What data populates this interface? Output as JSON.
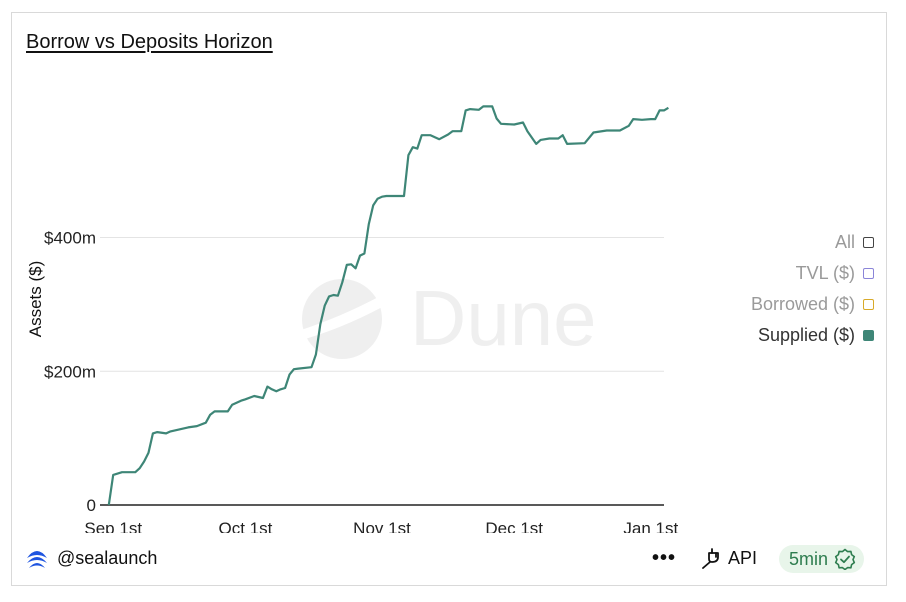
{
  "header": {
    "title": "Borrow vs Deposits Horizon"
  },
  "watermark": {
    "text": "Dune"
  },
  "chart_data": {
    "type": "line",
    "ylabel": "Assets ($)",
    "xlabel": "",
    "ylim": [
      0,
      640000000
    ],
    "y_ticks": [
      {
        "value": 0,
        "label": "0"
      },
      {
        "value": 200000000,
        "label": "$200m"
      },
      {
        "value": 400000000,
        "label": "$400m"
      }
    ],
    "x_ticks": [
      {
        "date": "2025-09-01",
        "label": "Sep 1st"
      },
      {
        "date": "2025-10-01",
        "label": "Oct 1st"
      },
      {
        "date": "2025-11-01",
        "label": "Nov 1st"
      },
      {
        "date": "2025-12-01",
        "label": "Dec 1st"
      },
      {
        "date": "2026-01-01",
        "label": "Jan 1st"
      }
    ],
    "xlim": [
      "2025-08-29",
      "2026-01-04"
    ],
    "grid": "horizontal",
    "legend_position": "right",
    "legend": [
      {
        "label": "All",
        "color": "#444444",
        "style": "outline"
      },
      {
        "label": "TVL ($)",
        "color": "#8b85d8",
        "style": "outline"
      },
      {
        "label": "Borrowed ($)",
        "color": "#d8aa2a",
        "style": "outline"
      },
      {
        "label": "Supplied ($)",
        "color": "#3e8677",
        "style": "filled"
      }
    ],
    "series": [
      {
        "name": "Supplied ($)",
        "color": "#3e8677",
        "points": [
          [
            "2025-08-31",
            0
          ],
          [
            "2025-09-01",
            45000000
          ],
          [
            "2025-09-02",
            47000000
          ],
          [
            "2025-09-03",
            49000000
          ],
          [
            "2025-09-06",
            49000000
          ],
          [
            "2025-09-07",
            55000000
          ],
          [
            "2025-09-08",
            65000000
          ],
          [
            "2025-09-09",
            78000000
          ],
          [
            "2025-09-10",
            107000000
          ],
          [
            "2025-09-11",
            109000000
          ],
          [
            "2025-09-13",
            107000000
          ],
          [
            "2025-09-14",
            110000000
          ],
          [
            "2025-09-16",
            113000000
          ],
          [
            "2025-09-18",
            116000000
          ],
          [
            "2025-09-20",
            118000000
          ],
          [
            "2025-09-22",
            123000000
          ],
          [
            "2025-09-23",
            135000000
          ],
          [
            "2025-09-24",
            140000000
          ],
          [
            "2025-09-27",
            140000000
          ],
          [
            "2025-09-28",
            150000000
          ],
          [
            "2025-09-30",
            156000000
          ],
          [
            "2025-10-01",
            158000000
          ],
          [
            "2025-10-03",
            163000000
          ],
          [
            "2025-10-05",
            160000000
          ],
          [
            "2025-10-06",
            177000000
          ],
          [
            "2025-10-07",
            173000000
          ],
          [
            "2025-10-08",
            170000000
          ],
          [
            "2025-10-09",
            173000000
          ],
          [
            "2025-10-10",
            175000000
          ],
          [
            "2025-10-11",
            195000000
          ],
          [
            "2025-10-12",
            203000000
          ],
          [
            "2025-10-13",
            204000000
          ],
          [
            "2025-10-16",
            206000000
          ],
          [
            "2025-10-17",
            225000000
          ],
          [
            "2025-10-18",
            270000000
          ],
          [
            "2025-10-19",
            298000000
          ],
          [
            "2025-10-20",
            312000000
          ],
          [
            "2025-10-21",
            314000000
          ],
          [
            "2025-10-22",
            313000000
          ],
          [
            "2025-10-23",
            333000000
          ],
          [
            "2025-10-24",
            359000000
          ],
          [
            "2025-10-25",
            360000000
          ],
          [
            "2025-10-26",
            354000000
          ],
          [
            "2025-10-27",
            373000000
          ],
          [
            "2025-10-28",
            376000000
          ],
          [
            "2025-10-29",
            420000000
          ],
          [
            "2025-10-30",
            448000000
          ],
          [
            "2025-10-31",
            458000000
          ],
          [
            "2025-11-01",
            461000000
          ],
          [
            "2025-11-02",
            462000000
          ],
          [
            "2025-11-06",
            462000000
          ],
          [
            "2025-11-07",
            523000000
          ],
          [
            "2025-11-08",
            535000000
          ],
          [
            "2025-11-09",
            533000000
          ],
          [
            "2025-11-10",
            553000000
          ],
          [
            "2025-11-12",
            553000000
          ],
          [
            "2025-11-14",
            547000000
          ],
          [
            "2025-11-16",
            554000000
          ],
          [
            "2025-11-17",
            559000000
          ],
          [
            "2025-11-19",
            559000000
          ],
          [
            "2025-11-20",
            590000000
          ],
          [
            "2025-11-21",
            592000000
          ],
          [
            "2025-11-23",
            591000000
          ],
          [
            "2025-11-24",
            596000000
          ],
          [
            "2025-11-26",
            596000000
          ],
          [
            "2025-11-27",
            578000000
          ],
          [
            "2025-11-28",
            570000000
          ],
          [
            "2025-12-01",
            569000000
          ],
          [
            "2025-12-03",
            572000000
          ],
          [
            "2025-12-04",
            559000000
          ],
          [
            "2025-12-06",
            540000000
          ],
          [
            "2025-12-07",
            546000000
          ],
          [
            "2025-12-09",
            548000000
          ],
          [
            "2025-12-11",
            548000000
          ],
          [
            "2025-12-12",
            553000000
          ],
          [
            "2025-12-13",
            540000000
          ],
          [
            "2025-12-17",
            541000000
          ],
          [
            "2025-12-19",
            557000000
          ],
          [
            "2025-12-22",
            560000000
          ],
          [
            "2025-12-25",
            560000000
          ],
          [
            "2025-12-27",
            567000000
          ],
          [
            "2025-12-28",
            577000000
          ],
          [
            "2025-12-30",
            576000000
          ],
          [
            "2026-01-01",
            577000000
          ],
          [
            "2026-01-02",
            577000000
          ],
          [
            "2026-01-03",
            590000000
          ],
          [
            "2026-01-04",
            590000000
          ],
          [
            "2026-01-05",
            594000000
          ]
        ]
      }
    ]
  },
  "footer": {
    "owner_handle": "@sealaunch",
    "more_label": "•••",
    "api_label": "API",
    "refresh_label": "5min"
  },
  "icons": {
    "owner_logo": "sealaunch-logo-icon",
    "api": "plug-icon",
    "refresh_status": "check-badge-icon"
  }
}
